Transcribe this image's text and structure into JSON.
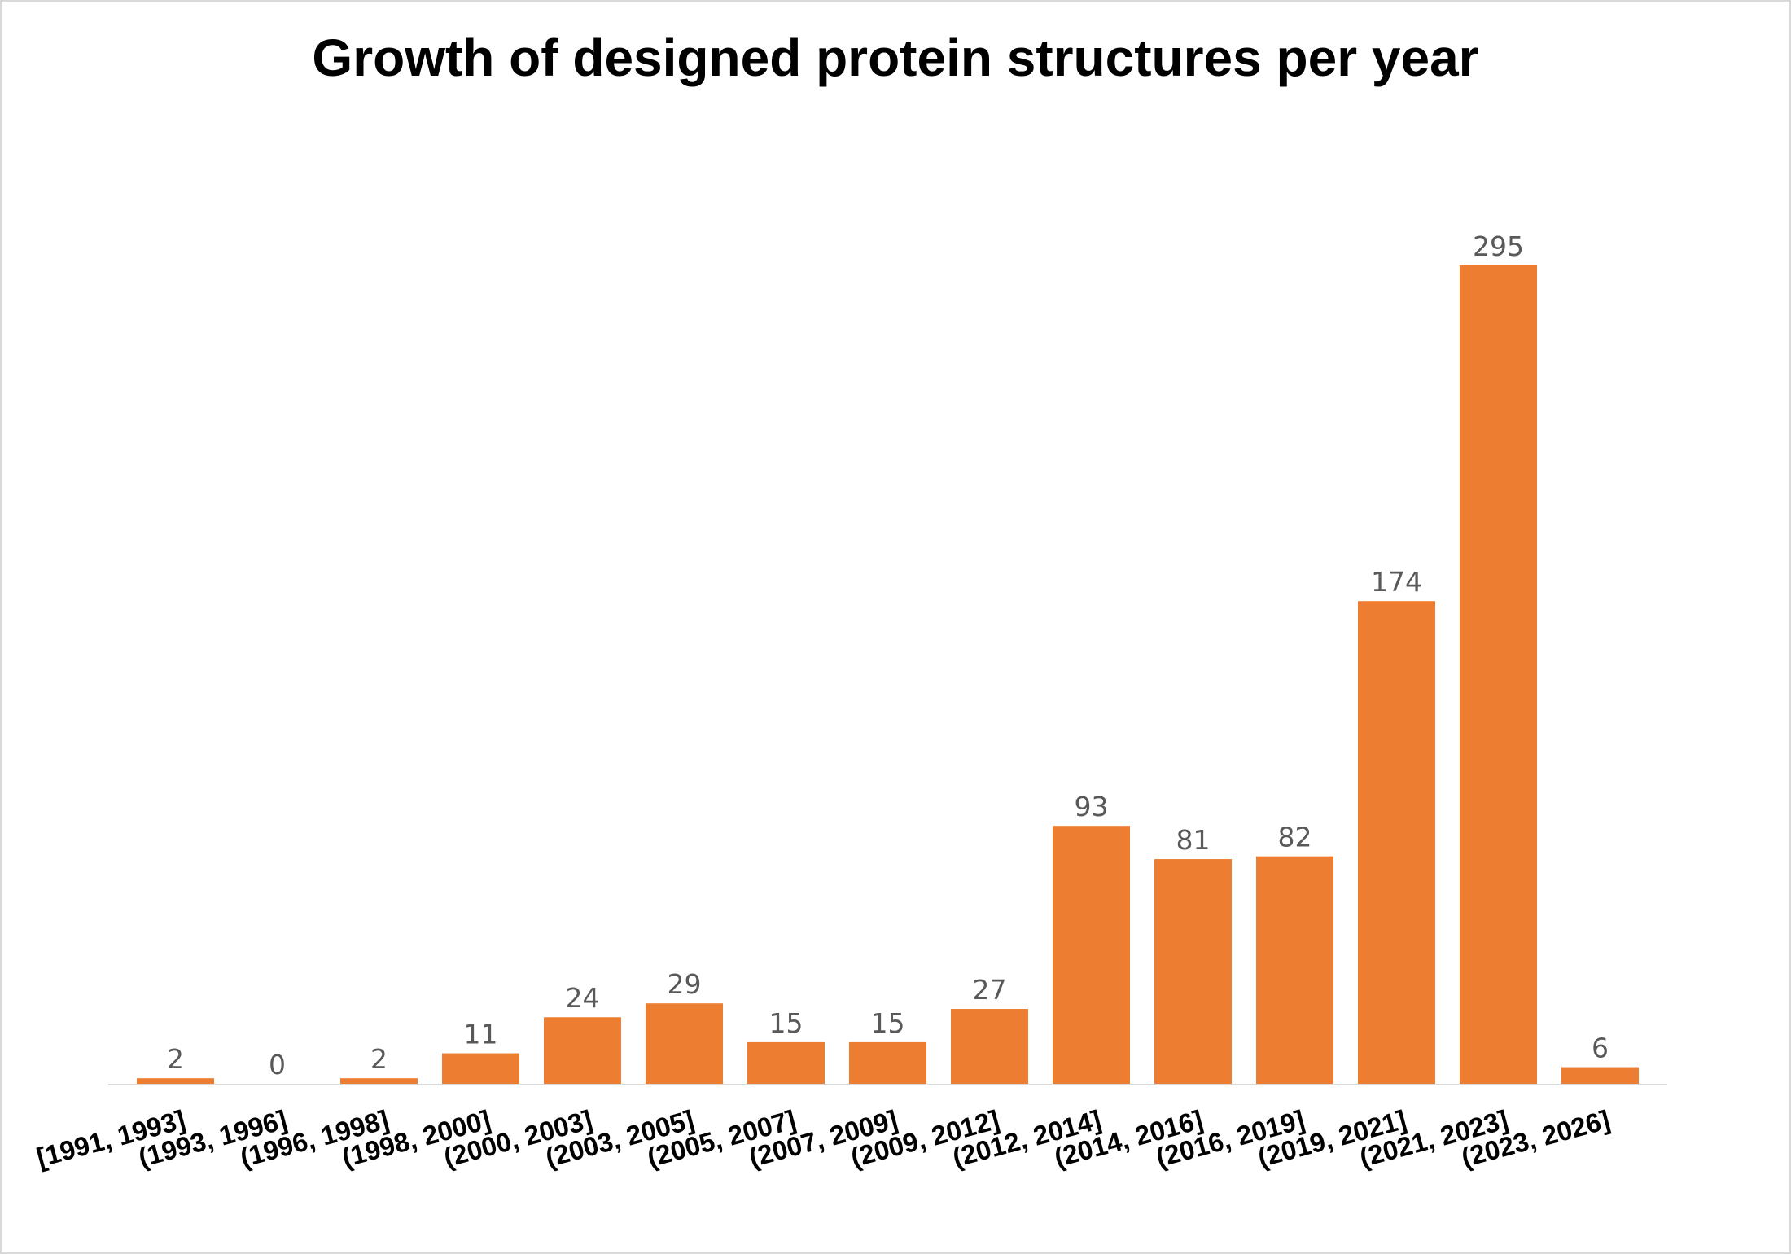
{
  "chart_data": {
    "type": "bar",
    "title": "Growth of designed protein structures per year",
    "xlabel": "",
    "ylabel": "",
    "categories": [
      "[1991, 1993]",
      "(1993, 1996]",
      "(1996, 1998]",
      "(1998, 2000]",
      "(2000, 2003]",
      "(2003, 2005]",
      "(2005, 2007]",
      "(2007, 2009]",
      "(2009, 2012]",
      "(2012, 2014]",
      "(2014, 2016]",
      "(2016, 2019]",
      "(2019, 2021]",
      "(2021, 2023]",
      "(2023, 2026]"
    ],
    "values": [
      2,
      0,
      2,
      11,
      24,
      29,
      15,
      15,
      27,
      93,
      81,
      82,
      174,
      295,
      6
    ],
    "ylim": [
      0,
      295
    ],
    "grid": false,
    "legend": "none",
    "bar_color": "#ED7D31",
    "axis_color": "#d9d9d9"
  }
}
